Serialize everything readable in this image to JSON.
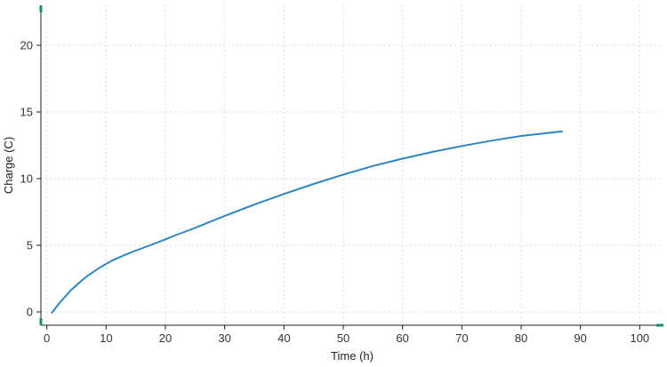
{
  "chart_data": {
    "type": "line",
    "title": "",
    "xlabel": "Time (h)",
    "ylabel": "Charge (C)",
    "xlim": [
      -1,
      104
    ],
    "ylim": [
      -1,
      23
    ],
    "xticks": [
      0,
      10,
      20,
      30,
      40,
      50,
      60,
      70,
      80,
      90,
      100
    ],
    "yticks": [
      0,
      5,
      10,
      15,
      20
    ],
    "grid": true,
    "legend": "none",
    "colors": {
      "series": "#2e86c1",
      "accent": "#1a8a7a"
    },
    "series": [
      {
        "x": [
          0.8,
          2,
          3,
          4,
          5,
          6,
          7,
          8,
          9,
          10,
          11,
          12,
          13,
          15,
          18,
          20,
          22,
          25,
          28,
          30,
          35,
          40,
          45,
          50,
          55,
          60,
          65,
          70,
          75,
          80,
          85,
          87
        ],
        "values": [
          -0.1,
          0.6,
          1.1,
          1.6,
          2.0,
          2.4,
          2.75,
          3.05,
          3.35,
          3.6,
          3.85,
          4.05,
          4.25,
          4.6,
          5.1,
          5.45,
          5.8,
          6.3,
          6.85,
          7.2,
          8.05,
          8.85,
          9.6,
          10.3,
          10.95,
          11.5,
          12.0,
          12.45,
          12.85,
          13.2,
          13.45,
          13.55
        ]
      }
    ]
  }
}
